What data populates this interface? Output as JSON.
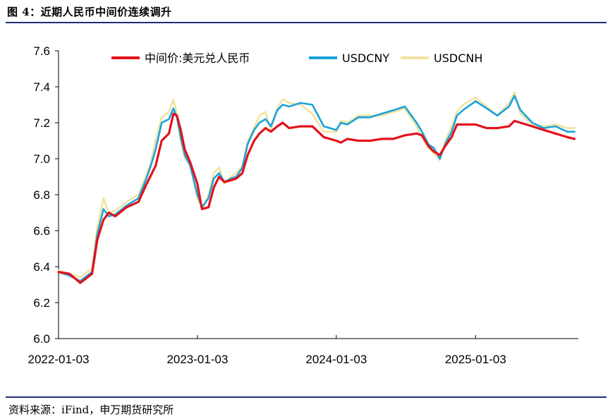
{
  "figure": {
    "title": "图 4：近期人民币中间价连续调升",
    "source": "资料来源：iFind，申万期货研究所"
  },
  "chart_data": {
    "type": "line",
    "title": "",
    "xlabel": "",
    "ylabel": "",
    "ylim": [
      6.0,
      7.6
    ],
    "yticks": [
      "6.0",
      "6.2",
      "6.4",
      "6.6",
      "6.8",
      "7.0",
      "7.2",
      "7.4",
      "7.6"
    ],
    "xlim": [
      "2022-01-03",
      "2025-09-30"
    ],
    "xticks": [
      "2022-01-03",
      "2023-01-03",
      "2024-01-03",
      "2025-01-03"
    ],
    "grid": false,
    "legend": "top",
    "colors": {
      "mid": "#e3121b",
      "cny": "#1aa3dc",
      "cnh": "#f1e3a0"
    },
    "series": [
      {
        "name": "中间价:美元兑人民币",
        "x": [
          "2022-01-03",
          "2022-02-01",
          "2022-03-01",
          "2022-04-01",
          "2022-04-15",
          "2022-05-01",
          "2022-05-15",
          "2022-06-01",
          "2022-07-01",
          "2022-08-01",
          "2022-08-20",
          "2022-09-01",
          "2022-09-15",
          "2022-10-01",
          "2022-10-20",
          "2022-11-01",
          "2022-11-10",
          "2022-11-20",
          "2022-12-01",
          "2022-12-15",
          "2023-01-03",
          "2023-01-15",
          "2023-02-01",
          "2023-02-15",
          "2023-03-01",
          "2023-03-15",
          "2023-04-01",
          "2023-04-15",
          "2023-05-01",
          "2023-05-15",
          "2023-06-01",
          "2023-06-15",
          "2023-07-01",
          "2023-07-15",
          "2023-08-01",
          "2023-08-15",
          "2023-09-01",
          "2023-10-01",
          "2023-11-01",
          "2023-12-01",
          "2024-01-03",
          "2024-01-15",
          "2024-02-01",
          "2024-03-01",
          "2024-04-01",
          "2024-05-01",
          "2024-06-01",
          "2024-07-01",
          "2024-08-01",
          "2024-08-15",
          "2024-09-01",
          "2024-09-15",
          "2024-10-01",
          "2024-10-15",
          "2024-11-01",
          "2024-11-15",
          "2024-12-01",
          "2025-01-03",
          "2025-02-01",
          "2025-03-01",
          "2025-04-01",
          "2025-04-15",
          "2025-05-01",
          "2025-06-01",
          "2025-07-01",
          "2025-08-01",
          "2025-09-01",
          "2025-09-20"
        ],
        "values": [
          6.37,
          6.36,
          6.31,
          6.36,
          6.55,
          6.66,
          6.7,
          6.68,
          6.73,
          6.76,
          6.85,
          6.9,
          6.96,
          7.1,
          7.14,
          7.25,
          7.24,
          7.16,
          7.05,
          6.98,
          6.86,
          6.72,
          6.73,
          6.84,
          6.9,
          6.87,
          6.88,
          6.89,
          6.92,
          7.02,
          7.1,
          7.14,
          7.17,
          7.15,
          7.18,
          7.2,
          7.17,
          7.18,
          7.18,
          7.12,
          7.1,
          7.09,
          7.11,
          7.1,
          7.1,
          7.11,
          7.11,
          7.13,
          7.14,
          7.13,
          7.07,
          7.04,
          7.02,
          7.07,
          7.12,
          7.19,
          7.19,
          7.19,
          7.17,
          7.17,
          7.18,
          7.21,
          7.2,
          7.18,
          7.16,
          7.14,
          7.12,
          7.11
        ]
      },
      {
        "name": "USDCNY",
        "x": [
          "2022-01-03",
          "2022-02-01",
          "2022-03-01",
          "2022-04-01",
          "2022-04-15",
          "2022-05-01",
          "2022-05-15",
          "2022-06-01",
          "2022-07-01",
          "2022-08-01",
          "2022-08-20",
          "2022-09-01",
          "2022-09-15",
          "2022-10-01",
          "2022-10-20",
          "2022-11-01",
          "2022-11-10",
          "2022-11-20",
          "2022-12-01",
          "2022-12-15",
          "2023-01-03",
          "2023-01-15",
          "2023-02-01",
          "2023-02-15",
          "2023-03-01",
          "2023-03-15",
          "2023-04-01",
          "2023-04-15",
          "2023-05-01",
          "2023-05-15",
          "2023-06-01",
          "2023-06-15",
          "2023-07-01",
          "2023-07-15",
          "2023-08-01",
          "2023-08-15",
          "2023-09-01",
          "2023-10-01",
          "2023-11-01",
          "2023-12-01",
          "2024-01-03",
          "2024-01-15",
          "2024-02-01",
          "2024-03-01",
          "2024-04-01",
          "2024-05-01",
          "2024-06-01",
          "2024-07-01",
          "2024-08-01",
          "2024-08-15",
          "2024-09-01",
          "2024-09-15",
          "2024-10-01",
          "2024-10-15",
          "2024-11-01",
          "2024-11-15",
          "2024-12-01",
          "2025-01-03",
          "2025-02-01",
          "2025-03-01",
          "2025-04-01",
          "2025-04-15",
          "2025-05-01",
          "2025-06-01",
          "2025-07-01",
          "2025-08-01",
          "2025-09-01",
          "2025-09-20"
        ],
        "values": [
          6.37,
          6.35,
          6.32,
          6.37,
          6.58,
          6.72,
          6.68,
          6.69,
          6.74,
          6.78,
          6.88,
          6.95,
          7.05,
          7.2,
          7.22,
          7.28,
          7.23,
          7.12,
          7.02,
          6.96,
          6.8,
          6.73,
          6.78,
          6.89,
          6.92,
          6.87,
          6.89,
          6.9,
          6.95,
          7.08,
          7.16,
          7.2,
          7.22,
          7.18,
          7.27,
          7.3,
          7.29,
          7.31,
          7.3,
          7.18,
          7.16,
          7.2,
          7.19,
          7.23,
          7.23,
          7.25,
          7.27,
          7.29,
          7.2,
          7.15,
          7.08,
          7.06,
          7.0,
          7.08,
          7.15,
          7.24,
          7.27,
          7.32,
          7.28,
          7.24,
          7.29,
          7.35,
          7.27,
          7.2,
          7.17,
          7.18,
          7.15,
          7.15
        ]
      },
      {
        "name": "USDCNH",
        "x": [
          "2022-01-03",
          "2022-02-01",
          "2022-03-01",
          "2022-04-01",
          "2022-04-15",
          "2022-05-01",
          "2022-05-15",
          "2022-06-01",
          "2022-07-01",
          "2022-08-01",
          "2022-08-20",
          "2022-09-01",
          "2022-09-15",
          "2022-10-01",
          "2022-10-20",
          "2022-11-01",
          "2022-11-10",
          "2022-11-20",
          "2022-12-01",
          "2022-12-15",
          "2023-01-03",
          "2023-01-15",
          "2023-02-01",
          "2023-02-15",
          "2023-03-01",
          "2023-03-15",
          "2023-04-01",
          "2023-04-15",
          "2023-05-01",
          "2023-05-15",
          "2023-06-01",
          "2023-06-15",
          "2023-07-01",
          "2023-07-15",
          "2023-08-01",
          "2023-08-15",
          "2023-09-01",
          "2023-10-01",
          "2023-11-01",
          "2023-12-01",
          "2024-01-03",
          "2024-01-15",
          "2024-02-01",
          "2024-03-01",
          "2024-04-01",
          "2024-05-01",
          "2024-06-01",
          "2024-07-01",
          "2024-08-01",
          "2024-08-15",
          "2024-09-01",
          "2024-09-15",
          "2024-10-01",
          "2024-10-15",
          "2024-11-01",
          "2024-11-15",
          "2024-12-01",
          "2025-01-03",
          "2025-02-01",
          "2025-03-01",
          "2025-04-01",
          "2025-04-15",
          "2025-05-01",
          "2025-06-01",
          "2025-07-01",
          "2025-08-01",
          "2025-09-01",
          "2025-09-20"
        ],
        "values": [
          6.38,
          6.36,
          6.34,
          6.39,
          6.62,
          6.78,
          6.7,
          6.71,
          6.76,
          6.8,
          6.9,
          6.97,
          7.1,
          7.23,
          7.26,
          7.33,
          7.25,
          7.1,
          7.0,
          6.97,
          6.78,
          6.72,
          6.8,
          6.92,
          6.95,
          6.86,
          6.9,
          6.92,
          6.96,
          7.1,
          7.17,
          7.24,
          7.26,
          7.16,
          7.28,
          7.33,
          7.31,
          7.3,
          7.25,
          7.15,
          7.15,
          7.21,
          7.2,
          7.24,
          7.24,
          7.24,
          7.26,
          7.28,
          7.18,
          7.12,
          7.06,
          7.03,
          6.99,
          7.1,
          7.18,
          7.26,
          7.3,
          7.34,
          7.29,
          7.24,
          7.31,
          7.37,
          7.25,
          7.19,
          7.18,
          7.19,
          7.17,
          7.17
        ]
      }
    ]
  }
}
